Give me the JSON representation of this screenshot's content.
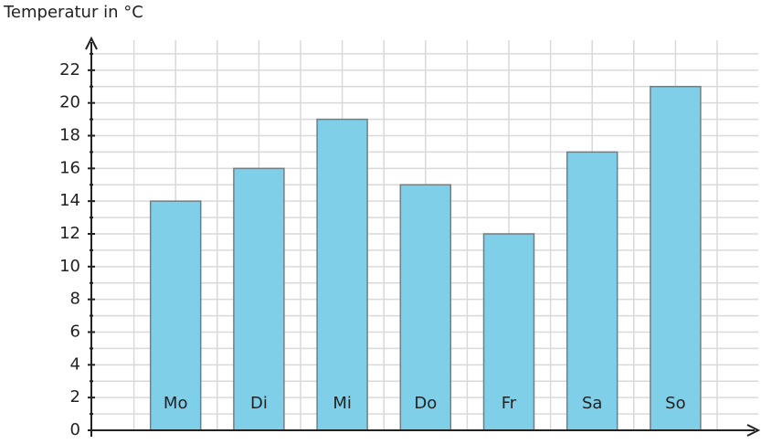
{
  "chart_data": {
    "type": "bar",
    "y_label": "Temperatur in °C",
    "categories": [
      "Mo",
      "Di",
      "Mi",
      "Do",
      "Fr",
      "Sa",
      "So"
    ],
    "values": [
      14,
      16,
      19,
      15,
      12,
      17,
      21
    ],
    "color": "#7fcfe9",
    "ylim": [
      0,
      24
    ],
    "yticks": [
      0,
      2,
      4,
      6,
      8,
      10,
      12,
      14,
      16,
      18,
      20,
      22
    ],
    "grid": true
  }
}
